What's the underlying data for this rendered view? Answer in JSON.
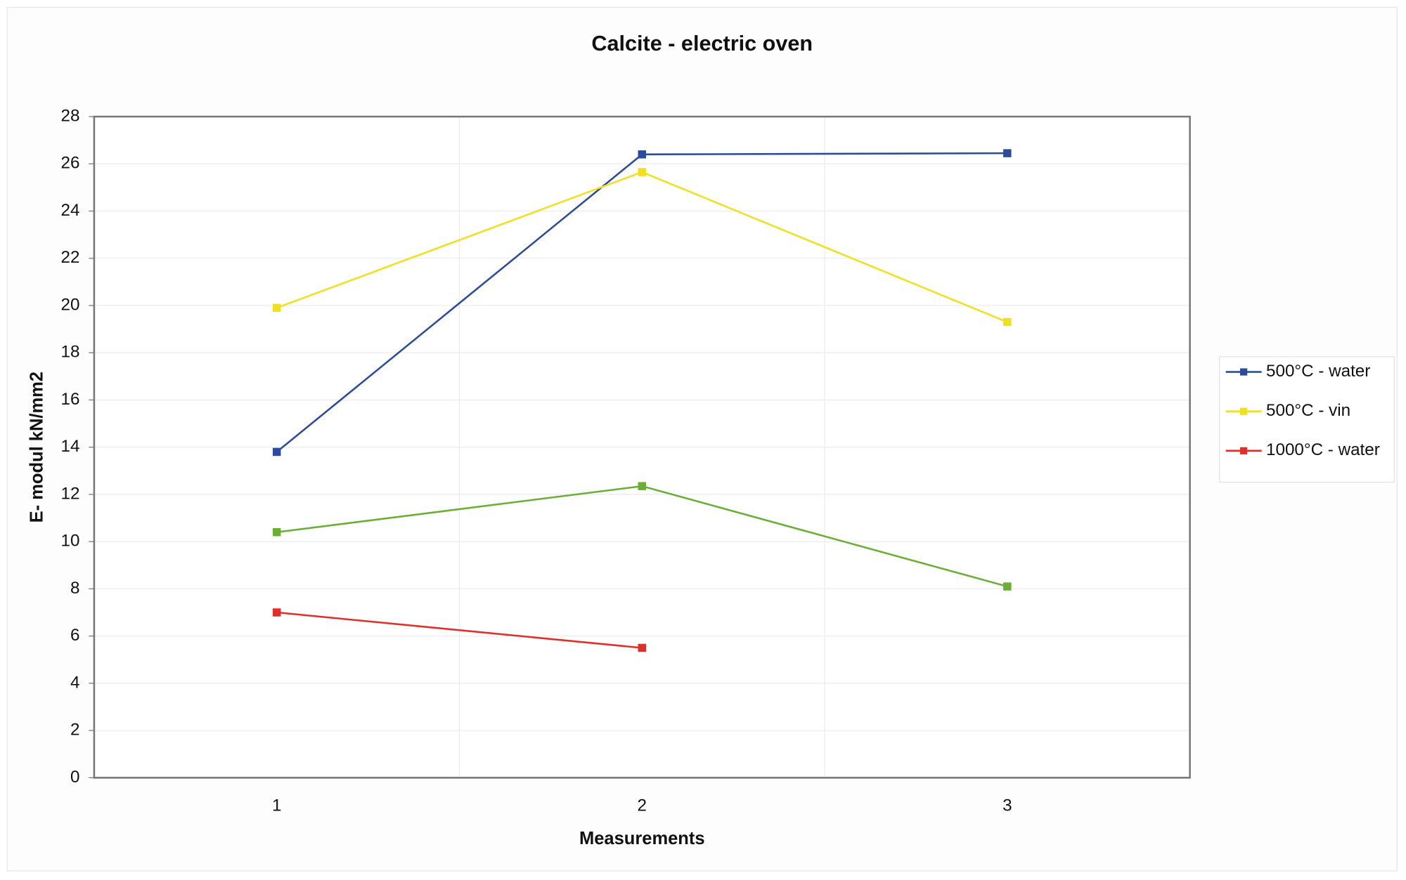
{
  "chart_data": {
    "type": "line",
    "title": "Calcite - electric oven",
    "x_label": "Measurements",
    "y_label": "E- modul kN/mm2",
    "categories": [
      1,
      2,
      3
    ],
    "series": [
      {
        "name": "500°C - water",
        "color": "#2b4c9c",
        "values": [
          13.8,
          26.4,
          26.45
        ]
      },
      {
        "name": "500°C - vin",
        "color": "#efe11e",
        "values": [
          19.9,
          25.65,
          19.3
        ]
      },
      {
        "name": "1000°C - water",
        "color": "#e02f28",
        "values": [
          7.0,
          5.5,
          null
        ]
      },
      {
        "color": "#6aaf34",
        "values": [
          10.4,
          12.35,
          8.1
        ]
      }
    ],
    "ylim": [
      0,
      28
    ],
    "yticks": [
      0,
      2,
      4,
      6,
      8,
      10,
      12,
      14,
      16,
      18,
      20,
      22,
      24,
      26,
      28
    ],
    "grid": true,
    "legend": "right"
  }
}
